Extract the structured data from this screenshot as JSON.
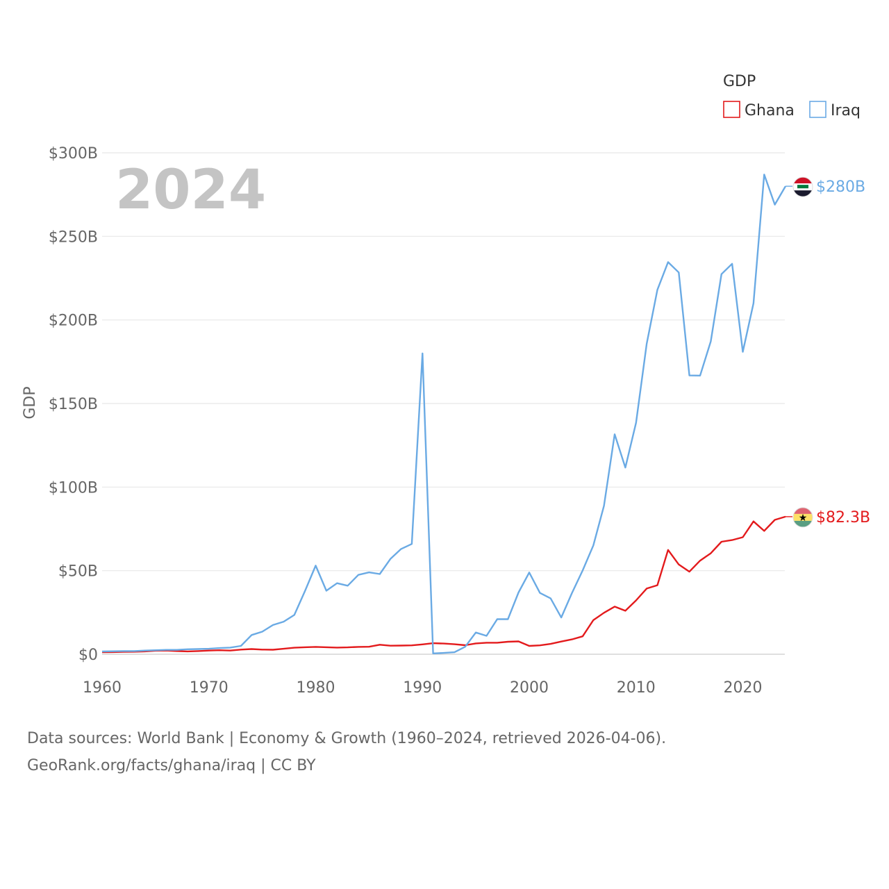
{
  "chart_data": {
    "type": "line",
    "title": "",
    "watermark_year": "2024",
    "ylabel": "GDP",
    "xlabel": "",
    "xlim": [
      1960,
      2024
    ],
    "ylim": [
      0,
      300
    ],
    "x_ticks": [
      1960,
      1970,
      1980,
      1990,
      2000,
      2010,
      2020
    ],
    "x_tick_labels": [
      "1960",
      "1970",
      "1980",
      "1990",
      "2000",
      "2010",
      "2020"
    ],
    "y_ticks": [
      0,
      50,
      100,
      150,
      200,
      250,
      300
    ],
    "y_tick_labels": [
      "$0",
      "$50B",
      "$100B",
      "$150B",
      "$200B",
      "$250B",
      "$300B"
    ],
    "legend": {
      "title": "GDP",
      "placement": "top-right"
    },
    "x": [
      1960,
      1961,
      1962,
      1963,
      1964,
      1965,
      1966,
      1967,
      1968,
      1969,
      1970,
      1971,
      1972,
      1973,
      1974,
      1975,
      1976,
      1977,
      1978,
      1979,
      1980,
      1981,
      1982,
      1983,
      1984,
      1985,
      1986,
      1987,
      1988,
      1989,
      1990,
      1991,
      1992,
      1993,
      1994,
      1995,
      1996,
      1997,
      1998,
      1999,
      2000,
      2001,
      2002,
      2003,
      2004,
      2005,
      2006,
      2007,
      2008,
      2009,
      2010,
      2011,
      2012,
      2013,
      2014,
      2015,
      2016,
      2017,
      2018,
      2019,
      2020,
      2021,
      2022,
      2023,
      2024
    ],
    "series": [
      {
        "name": "Ghana",
        "color": "#e31a1c",
        "end_label": "$82.3B",
        "values": [
          1.2,
          1.3,
          1.4,
          1.5,
          1.7,
          2.1,
          2.2,
          1.9,
          1.7,
          1.9,
          2.2,
          2.4,
          2.2,
          2.8,
          3.1,
          2.8,
          2.7,
          3.3,
          3.9,
          4.2,
          4.4,
          4.2,
          4.0,
          4.1,
          4.4,
          4.5,
          5.7,
          5.1,
          5.2,
          5.3,
          5.9,
          6.6,
          6.4,
          6.0,
          5.4,
          6.5,
          6.9,
          6.9,
          7.5,
          7.7,
          5.0,
          5.3,
          6.2,
          7.6,
          8.9,
          10.7,
          20.4,
          24.8,
          28.5,
          26.0,
          32.2,
          39.3,
          41.3,
          62.4,
          53.7,
          49.4,
          56.0,
          60.4,
          67.3,
          68.3,
          70.0,
          79.5,
          73.8,
          80.4,
          82.3
        ]
      },
      {
        "name": "Iraq",
        "color": "#6aaae4",
        "end_label": "$280B",
        "values": [
          1.7,
          1.8,
          1.9,
          1.9,
          2.2,
          2.4,
          2.6,
          2.6,
          3.0,
          3.1,
          3.3,
          3.7,
          4.0,
          5.0,
          11.5,
          13.5,
          17.5,
          19.5,
          23.5,
          37.8,
          53.0,
          38.0,
          42.5,
          41.0,
          47.5,
          49.0,
          48.0,
          57.0,
          63.0,
          66.0,
          180.0,
          0.5,
          0.8,
          1.2,
          4.5,
          13.0,
          11.0,
          21.0,
          21.0,
          37.0,
          48.9,
          36.7,
          33.4,
          22.0,
          36.6,
          50.1,
          65.1,
          88.8,
          131.6,
          111.7,
          138.5,
          185.7,
          218.0,
          234.6,
          228.4,
          166.8,
          166.7,
          187.2,
          227.4,
          233.6,
          180.9,
          210.0,
          287.0,
          269.0,
          280.0
        ]
      }
    ],
    "source_line1": "Data sources: World Bank | Economy & Growth (1960–2024, retrieved 2026-04-06).",
    "source_line2": "GeoRank.org/facts/ghana/iraq | CC BY"
  }
}
